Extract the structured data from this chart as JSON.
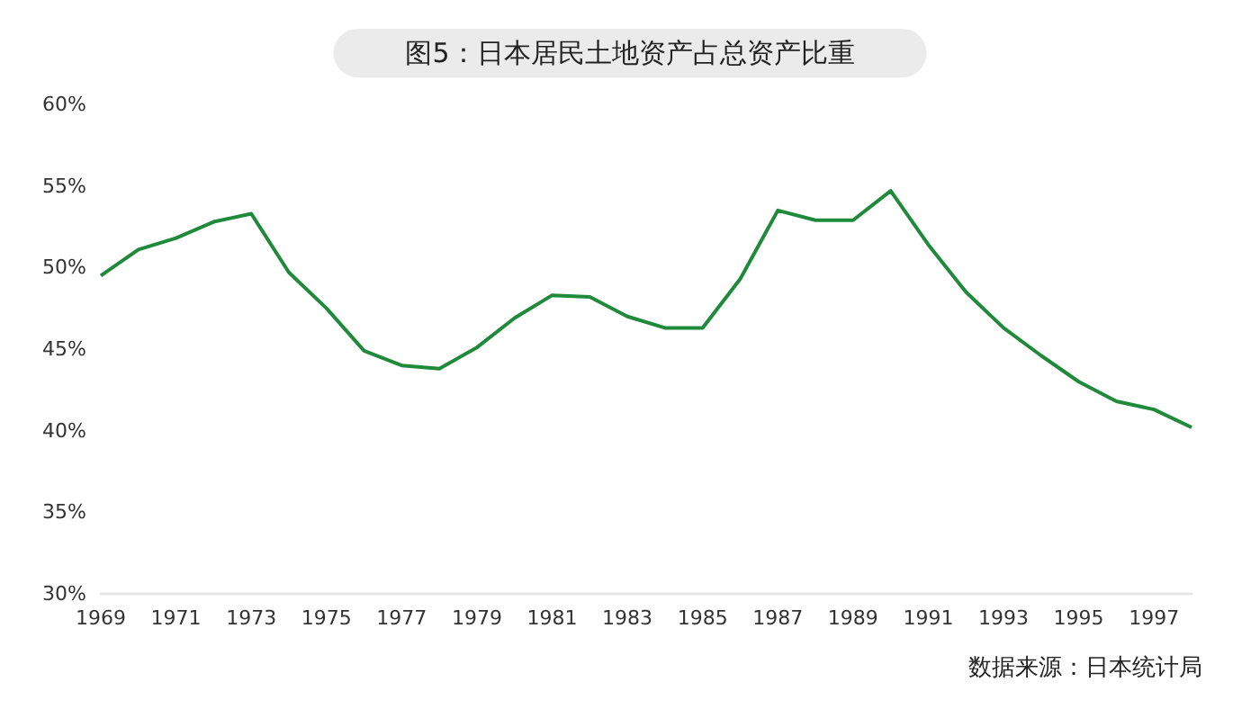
{
  "chart_data": {
    "type": "line",
    "title": "图5：日本居民土地资产占总资产比重",
    "annotations": [
      "数据来源：日本统计局"
    ],
    "categories": [
      "1969",
      null,
      "1971",
      null,
      "1973",
      null,
      "1975",
      null,
      "1977",
      null,
      "1979",
      null,
      "1981",
      null,
      "1983",
      null,
      "1985",
      null,
      "1987",
      null,
      "1989",
      null,
      "1991",
      null,
      "1993",
      null,
      "1995",
      null,
      "1997",
      null
    ],
    "series": [
      {
        "color": "#1e8a3a",
        "values": [
          49.5,
          51.1,
          51.8,
          52.8,
          53.3,
          49.7,
          47.5,
          44.9,
          44.0,
          43.8,
          45.1,
          46.9,
          48.3,
          48.2,
          47.0,
          46.3,
          46.3,
          49.3,
          53.5,
          52.9,
          52.9,
          54.7,
          51.4,
          48.5,
          46.3,
          44.6,
          43.0,
          41.8,
          41.3,
          40.2
        ]
      }
    ],
    "ylim": [
      30,
      60
    ],
    "yticks": [
      {
        "value": 30,
        "label": "30%"
      },
      {
        "value": 35,
        "label": "35%"
      },
      {
        "value": 40,
        "label": "40%"
      },
      {
        "value": 45,
        "label": "45%"
      },
      {
        "value": 50,
        "label": "50%"
      },
      {
        "value": 55,
        "label": "55%"
      },
      {
        "value": 60,
        "label": "60%"
      }
    ],
    "grid": false,
    "marker": "none",
    "line_style": "solid"
  }
}
